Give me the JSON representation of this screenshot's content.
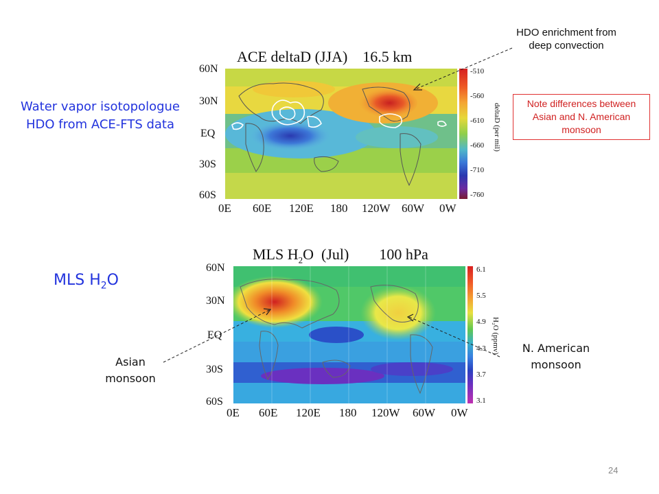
{
  "ace_panel": {
    "title": "ACE deltaD (JJA)    16.5 km",
    "lat_labels": [
      "60N",
      "30N",
      "EQ",
      "30S",
      "60S"
    ],
    "lon_labels": [
      "0E",
      "60E",
      "120E",
      "180",
      "120W",
      "60W",
      "0W"
    ],
    "colorbar_ticks": [
      "-510",
      "-560",
      "-610",
      "-660",
      "-710",
      "-760"
    ],
    "colorbar_label": "deltaD (per mil)"
  },
  "mls_panel": {
    "title_prefix": "MLS H",
    "title_sub": "2",
    "title_suffix": "O  (Jul)        100 hPa",
    "lat_labels": [
      "60N",
      "30N",
      "EQ",
      "30S",
      "60S"
    ],
    "lon_labels": [
      "0E",
      "60E",
      "120E",
      "180",
      "120W",
      "60W",
      "0W"
    ],
    "colorbar_ticks": [
      "6.1",
      "5.5",
      "4.9",
      "4.3",
      "3.7",
      "3.1"
    ],
    "colorbar_label": "H₂O (ppmv)"
  },
  "labels": {
    "hdo_label": "Water vapor isotopologue HDO from ACE-FTS data",
    "mls_label_prefix": "MLS H",
    "mls_label_sub": "2",
    "mls_label_suffix": "O",
    "hdo_enrichment": "HDO enrichment from deep convection",
    "note": "Note differences between Asian and N. American monsoon",
    "asian_monsoon": "Asian monsoon",
    "na_monsoon": "N. American monsoon"
  },
  "page_number": "24"
}
